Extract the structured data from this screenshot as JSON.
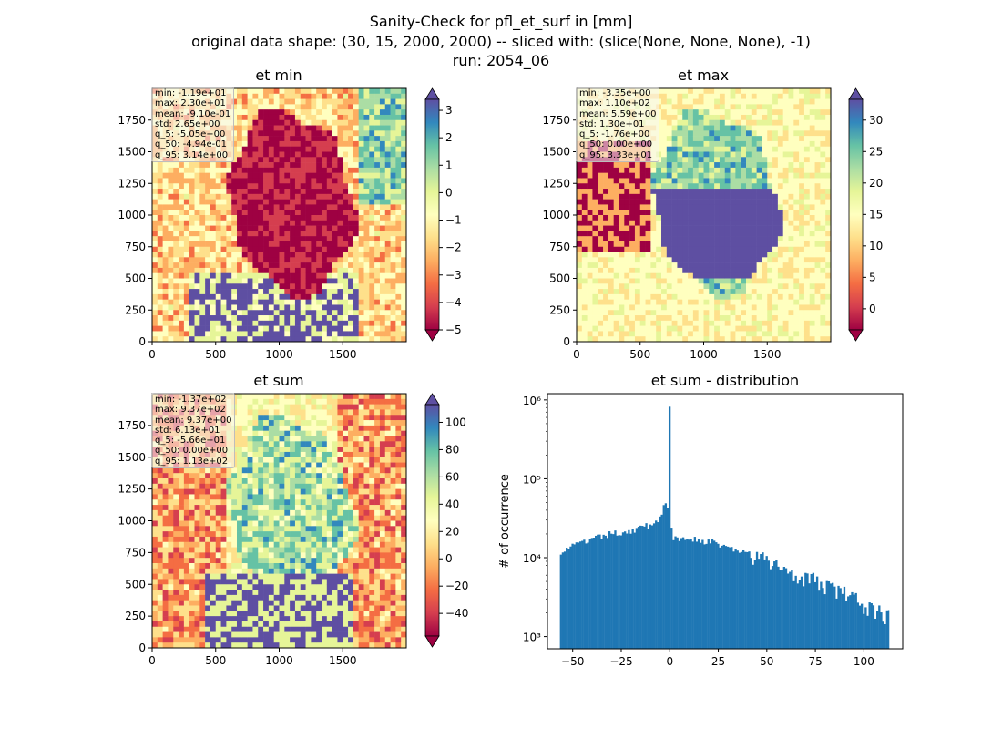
{
  "figure": {
    "title_lines": [
      "Sanity-Check for pfl_et_surf in [mm]",
      "original data shape: (30, 15, 2000, 2000) -- sliced with: (slice(None, None, None), -1)",
      "run: 2054_06"
    ]
  },
  "colors": {
    "spectral": [
      "#9e0142",
      "#d53e4f",
      "#f46d43",
      "#fdae61",
      "#fee08b",
      "#ffffbf",
      "#e6f598",
      "#abdda4",
      "#66c2a5",
      "#3288bd",
      "#5e4fa2"
    ],
    "hist_bar": "#1f77b4"
  },
  "chart_data": [
    {
      "type": "heatmap",
      "title": "et min",
      "x_ticks": [
        "0",
        "500",
        "1000",
        "1500"
      ],
      "y_ticks": [
        "0",
        "250",
        "500",
        "750",
        "1000",
        "1250",
        "1500",
        "1750"
      ],
      "xlim": [
        0,
        2000
      ],
      "ylim": [
        0,
        2000
      ],
      "colorbar": {
        "range": [
          -5,
          3.4
        ],
        "ticks": [
          "3",
          "2",
          "1",
          "0",
          "−1",
          "−2",
          "−3",
          "−4",
          "−5"
        ],
        "tick_values": [
          3,
          2,
          1,
          0,
          -1,
          -2,
          -3,
          -4,
          -5
        ],
        "extend": "both"
      },
      "stats": [
        "min: -1.19e+01",
        "max: 2.30e+01",
        "mean: -9.10e-01",
        "std: 2.65e+00",
        "q_5: -5.05e+00",
        "q_50: -4.94e-01",
        "q_95: 3.14e+00"
      ]
    },
    {
      "type": "heatmap",
      "title": "et max",
      "x_ticks": [
        "0",
        "500",
        "1000",
        "1500"
      ],
      "y_ticks": [
        "0",
        "250",
        "500",
        "750",
        "1000",
        "1250",
        "1500",
        "1750"
      ],
      "xlim": [
        0,
        2000
      ],
      "ylim": [
        0,
        2000
      ],
      "colorbar": {
        "range": [
          -3.35,
          33.3
        ],
        "ticks": [
          "30",
          "25",
          "20",
          "15",
          "10",
          "5",
          "0"
        ],
        "tick_values": [
          30,
          25,
          20,
          15,
          10,
          5,
          0
        ],
        "extend": "both"
      },
      "stats": [
        "min: -3.35e+00",
        "max: 1.10e+02",
        "mean: 5.59e+00",
        "std: 1.30e+01",
        "q_5: -1.76e+00",
        "q_50: 0.00e+00",
        "q_95: 3.33e+01"
      ]
    },
    {
      "type": "heatmap",
      "title": "et sum",
      "x_ticks": [
        "0",
        "500",
        "1000",
        "1500"
      ],
      "y_ticks": [
        "0",
        "250",
        "500",
        "750",
        "1000",
        "1250",
        "1500",
        "1750"
      ],
      "xlim": [
        0,
        2000
      ],
      "ylim": [
        0,
        2000
      ],
      "colorbar": {
        "range": [
          -56.6,
          113
        ],
        "ticks": [
          "100",
          "80",
          "60",
          "40",
          "20",
          "0",
          "−20",
          "−40"
        ],
        "tick_values": [
          100,
          80,
          60,
          40,
          20,
          0,
          -20,
          -40
        ],
        "extend": "both"
      },
      "stats": [
        "min: -1.37e+02",
        "max: 9.37e+02",
        "mean: 9.37e+00",
        "std: 6.13e+01",
        "q_5: -5.66e+01",
        "q_50: 0.00e+00",
        "q_95: 1.13e+02"
      ]
    },
    {
      "type": "bar",
      "title": "et sum - distribution",
      "ylabel": "# of occurrence",
      "yscale": "log",
      "ylim": [
        700,
        1200000
      ],
      "xlim": [
        -63,
        120
      ],
      "x_ticks": [
        "−50",
        "−25",
        "0",
        "25",
        "50",
        "75",
        "100"
      ],
      "x_tick_values": [
        -50,
        -25,
        0,
        25,
        50,
        75,
        100
      ],
      "y_ticks": [
        "10³",
        "10⁴",
        "10⁵",
        "10⁶"
      ],
      "y_tick_values": [
        1000,
        10000,
        100000,
        1000000
      ],
      "bin_range": [
        -56.6,
        113
      ],
      "bin_width": 1.0,
      "peak": {
        "x": 0,
        "value": 820000
      },
      "profile": [
        {
          "x": -56.6,
          "value": 12000
        },
        {
          "x": -50,
          "value": 14000
        },
        {
          "x": -40,
          "value": 17000
        },
        {
          "x": -30,
          "value": 20000
        },
        {
          "x": -20,
          "value": 22000
        },
        {
          "x": -10,
          "value": 26000
        },
        {
          "x": -5,
          "value": 32000
        },
        {
          "x": -2,
          "value": 55000
        },
        {
          "x": 2,
          "value": 17000
        },
        {
          "x": 10,
          "value": 18000
        },
        {
          "x": 25,
          "value": 15000
        },
        {
          "x": 50,
          "value": 9000
        },
        {
          "x": 75,
          "value": 5000
        },
        {
          "x": 90,
          "value": 3500
        },
        {
          "x": 100,
          "value": 2500
        },
        {
          "x": 113,
          "value": 1800
        }
      ]
    }
  ]
}
